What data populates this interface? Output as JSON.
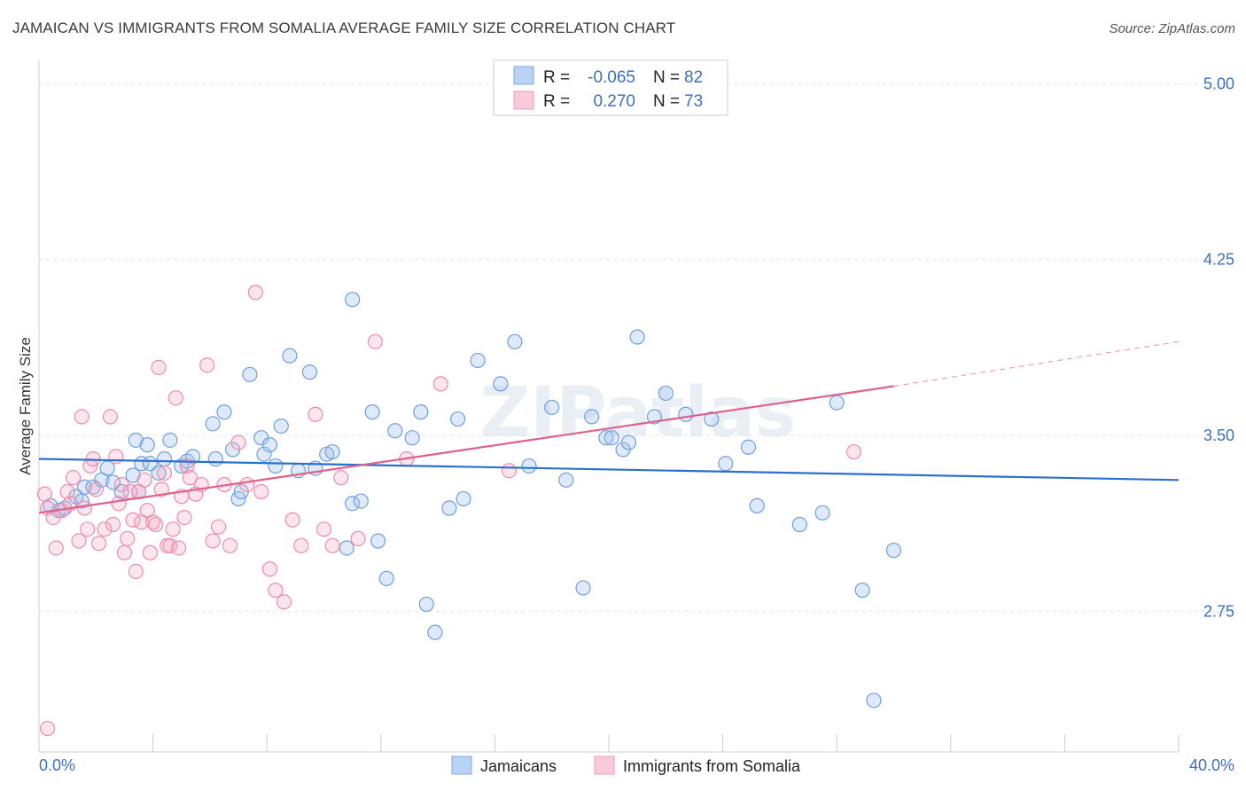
{
  "title": "JAMAICAN VS IMMIGRANTS FROM SOMALIA AVERAGE FAMILY SIZE CORRELATION CHART",
  "source": "Source: ZipAtlas.com",
  "watermark": "ZIPatlas",
  "colors": {
    "blue": "#6f9fe0",
    "blue_line": "#2b6fd0",
    "pink": "#f08caa",
    "pink_line": "#e0608a",
    "tick": "#3d6fc0"
  },
  "legend": {
    "rows": [
      {
        "r_label": "R =",
        "r_value": "-0.065",
        "n_label": "N =",
        "n_value": "82"
      },
      {
        "r_label": "R =",
        "r_value": "0.270",
        "n_label": "N =",
        "n_value": "73"
      }
    ]
  },
  "bottom_legend": [
    "Jamaicans",
    "Immigrants from Somalia"
  ],
  "chart_data": {
    "type": "scatter",
    "ylabel": "Average Family Size",
    "x_min_label": "0.0%",
    "x_max_label": "40.0%",
    "xlim": [
      0,
      40
    ],
    "ylim": [
      2.15,
      5.1
    ],
    "yticks": [
      2.75,
      3.5,
      4.25,
      5.0
    ],
    "ytick_labels": [
      "2.75",
      "3.50",
      "4.25",
      "5.00"
    ],
    "series": [
      {
        "name": "Jamaicans",
        "trend": [
          [
            0,
            3.4
          ],
          [
            40,
            3.31
          ]
        ],
        "points": [
          [
            0.4,
            3.2
          ],
          [
            0.7,
            3.18
          ],
          [
            0.9,
            3.19
          ],
          [
            1.3,
            3.24
          ],
          [
            1.5,
            3.22
          ],
          [
            1.6,
            3.28
          ],
          [
            1.9,
            3.28
          ],
          [
            2.2,
            3.31
          ],
          [
            2.4,
            3.36
          ],
          [
            2.6,
            3.3
          ],
          [
            2.9,
            3.26
          ],
          [
            3.3,
            3.33
          ],
          [
            3.5,
            3.26
          ],
          [
            3.4,
            3.48
          ],
          [
            3.6,
            3.38
          ],
          [
            3.8,
            3.46
          ],
          [
            3.9,
            3.38
          ],
          [
            4.2,
            3.34
          ],
          [
            4.4,
            3.4
          ],
          [
            4.6,
            3.48
          ],
          [
            5.0,
            3.37
          ],
          [
            5.2,
            3.39
          ],
          [
            5.4,
            3.41
          ],
          [
            6.2,
            3.4
          ],
          [
            6.1,
            3.55
          ],
          [
            6.5,
            3.6
          ],
          [
            6.8,
            3.44
          ],
          [
            7.0,
            3.23
          ],
          [
            7.1,
            3.26
          ],
          [
            7.4,
            3.76
          ],
          [
            7.8,
            3.49
          ],
          [
            7.9,
            3.42
          ],
          [
            8.1,
            3.46
          ],
          [
            8.3,
            3.37
          ],
          [
            8.5,
            3.54
          ],
          [
            8.8,
            3.84
          ],
          [
            9.1,
            3.35
          ],
          [
            9.5,
            3.77
          ],
          [
            9.7,
            3.36
          ],
          [
            10.1,
            3.42
          ],
          [
            10.3,
            3.43
          ],
          [
            10.8,
            3.02
          ],
          [
            11.0,
            3.21
          ],
          [
            11.3,
            3.22
          ],
          [
            11.0,
            4.08
          ],
          [
            11.7,
            3.6
          ],
          [
            11.9,
            3.05
          ],
          [
            12.2,
            2.89
          ],
          [
            12.5,
            3.52
          ],
          [
            13.1,
            3.49
          ],
          [
            13.4,
            3.6
          ],
          [
            13.6,
            2.78
          ],
          [
            13.9,
            2.66
          ],
          [
            14.4,
            3.19
          ],
          [
            14.7,
            3.57
          ],
          [
            14.9,
            3.23
          ],
          [
            15.4,
            3.82
          ],
          [
            16.2,
            3.72
          ],
          [
            16.7,
            3.9
          ],
          [
            17.2,
            3.37
          ],
          [
            18.0,
            3.62
          ],
          [
            18.5,
            3.31
          ],
          [
            19.1,
            2.85
          ],
          [
            19.4,
            3.58
          ],
          [
            19.9,
            3.49
          ],
          [
            20.1,
            3.49
          ],
          [
            20.5,
            3.44
          ],
          [
            20.7,
            3.47
          ],
          [
            21.0,
            3.92
          ],
          [
            21.6,
            3.58
          ],
          [
            22.0,
            3.68
          ],
          [
            22.7,
            3.59
          ],
          [
            23.6,
            3.57
          ],
          [
            24.1,
            3.38
          ],
          [
            24.9,
            3.45
          ],
          [
            25.2,
            3.2
          ],
          [
            26.7,
            3.12
          ],
          [
            27.5,
            3.17
          ],
          [
            28.0,
            3.64
          ],
          [
            28.9,
            2.84
          ],
          [
            29.3,
            2.37
          ],
          [
            30.0,
            3.01
          ]
        ]
      },
      {
        "name": "Immigrants from Somalia",
        "trend": [
          [
            0,
            3.17
          ],
          [
            30,
            3.71
          ]
        ],
        "trend_dashed": [
          [
            30,
            3.71
          ],
          [
            40,
            3.9
          ]
        ],
        "points": [
          [
            0.2,
            3.25
          ],
          [
            0.3,
            3.19
          ],
          [
            0.5,
            3.15
          ],
          [
            0.6,
            3.02
          ],
          [
            0.8,
            3.18
          ],
          [
            1.0,
            3.26
          ],
          [
            1.1,
            3.21
          ],
          [
            1.2,
            3.32
          ],
          [
            1.4,
            3.05
          ],
          [
            1.5,
            3.58
          ],
          [
            1.6,
            3.19
          ],
          [
            1.7,
            3.1
          ],
          [
            1.8,
            3.37
          ],
          [
            1.9,
            3.4
          ],
          [
            2.0,
            3.27
          ],
          [
            2.1,
            3.04
          ],
          [
            2.3,
            3.1
          ],
          [
            2.5,
            3.58
          ],
          [
            2.6,
            3.12
          ],
          [
            2.7,
            3.41
          ],
          [
            2.8,
            3.21
          ],
          [
            2.9,
            3.29
          ],
          [
            3.0,
            3.0
          ],
          [
            3.1,
            3.06
          ],
          [
            3.2,
            3.26
          ],
          [
            3.3,
            3.14
          ],
          [
            3.4,
            2.92
          ],
          [
            3.5,
            3.26
          ],
          [
            3.6,
            3.13
          ],
          [
            3.7,
            3.31
          ],
          [
            3.8,
            3.18
          ],
          [
            3.9,
            3.0
          ],
          [
            4.0,
            3.13
          ],
          [
            4.1,
            3.12
          ],
          [
            4.2,
            3.79
          ],
          [
            4.3,
            3.27
          ],
          [
            4.4,
            3.34
          ],
          [
            4.5,
            3.03
          ],
          [
            4.6,
            3.03
          ],
          [
            4.7,
            3.1
          ],
          [
            4.8,
            3.66
          ],
          [
            4.9,
            3.02
          ],
          [
            5.0,
            3.24
          ],
          [
            5.1,
            3.15
          ],
          [
            5.2,
            3.37
          ],
          [
            5.3,
            3.32
          ],
          [
            5.5,
            3.25
          ],
          [
            5.7,
            3.29
          ],
          [
            5.9,
            3.8
          ],
          [
            6.1,
            3.05
          ],
          [
            6.3,
            3.11
          ],
          [
            6.5,
            3.29
          ],
          [
            6.7,
            3.03
          ],
          [
            7.0,
            3.47
          ],
          [
            7.3,
            3.29
          ],
          [
            7.6,
            4.11
          ],
          [
            7.8,
            3.26
          ],
          [
            8.1,
            2.93
          ],
          [
            8.3,
            2.84
          ],
          [
            8.6,
            2.79
          ],
          [
            8.9,
            3.14
          ],
          [
            9.2,
            3.03
          ],
          [
            9.7,
            3.59
          ],
          [
            10.0,
            3.1
          ],
          [
            10.3,
            3.03
          ],
          [
            10.6,
            3.32
          ],
          [
            11.2,
            3.06
          ],
          [
            11.8,
            3.9
          ],
          [
            12.9,
            3.4
          ],
          [
            14.1,
            3.72
          ],
          [
            16.5,
            3.35
          ],
          [
            28.6,
            3.43
          ],
          [
            0.3,
            2.25
          ]
        ]
      }
    ]
  }
}
